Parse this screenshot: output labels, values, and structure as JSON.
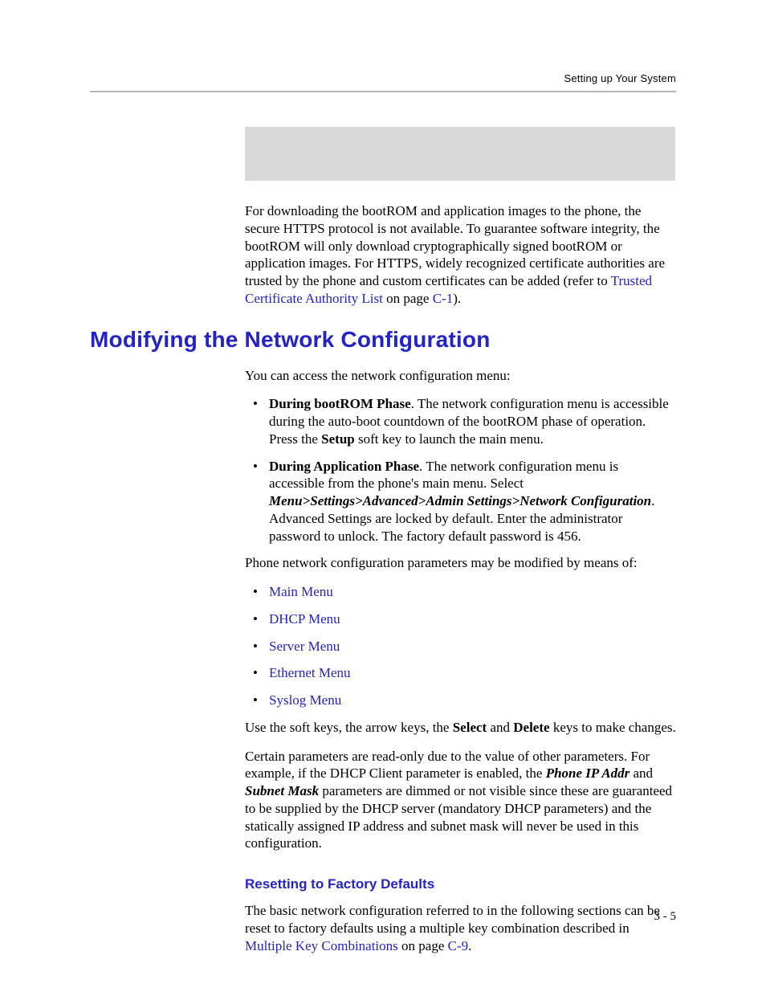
{
  "colors": {
    "link": "#2323c8",
    "heading": "#2323c8",
    "rule": "#b3b3b3",
    "placeholder_bg": "#d9d9d9",
    "text": "#000000",
    "background": "#ffffff"
  },
  "typography": {
    "body_family": "Palatino",
    "heading_family": "Futura",
    "body_size_pt": 11,
    "h1_size_pt": 18,
    "h3_size_pt": 11
  },
  "header": {
    "running": "Setting up Your System"
  },
  "intro": {
    "p1_a": "For downloading the bootROM and application images to the phone, the secure HTTPS protocol is not available. To guarantee software integrity, the bootROM will only download cryptographically signed bootROM or application images. For HTTPS, widely recognized certificate authorities are trusted by the phone and custom certificates can be added (refer to ",
    "p1_link": "Trusted Certificate Authority List",
    "p1_b": " on page ",
    "p1_page": "C-1",
    "p1_c": ")."
  },
  "section": {
    "title": "Modifying the Network Configuration",
    "lead": "You can access the network configuration menu:",
    "bullets": [
      {
        "lead": "During bootROM Phase",
        "rest_a": ". The network configuration menu is accessible during the auto-boot countdown of the bootROM phase of operation. Press the ",
        "bold1": "Setup",
        "rest_b": " soft key to launch the main menu."
      },
      {
        "lead": "During Application Phase",
        "rest_a": ". The network configuration menu is accessible from the phone's main menu. Select ",
        "italic1": "Menu>Settings>Advanced>Admin Settings>Network Configuration",
        "rest_b": ". Advanced Settings are locked by default. Enter the administrator password to unlock. The factory default password is 456."
      }
    ],
    "mid": "Phone network configuration parameters may be modified by means of:",
    "menu_links": [
      "Main Menu",
      "DHCP Menu",
      "Server Menu",
      "Ethernet Menu",
      "Syslog Menu"
    ],
    "after_links_a": "Use the soft keys, the arrow keys, the ",
    "after_links_b1": "Select",
    "after_links_mid": " and ",
    "after_links_b2": "Delete",
    "after_links_c": " keys to make changes.",
    "readonly_a": "Certain parameters are read-only due to the value of other parameters. For example, if the DHCP Client parameter is enabled, the ",
    "readonly_b1": "Phone IP Addr",
    "readonly_mid": " and ",
    "readonly_b2": "Subnet Mask",
    "readonly_c": " parameters are dimmed or not visible since these are guaranteed to be supplied by the DHCP server (mandatory DHCP parameters) and the statically assigned IP address and subnet mask will never be used in this configuration."
  },
  "sub": {
    "title": "Resetting to Factory Defaults",
    "p_a": "The basic network configuration referred to in the following sections can be reset to factory defaults using a multiple key combination described in ",
    "p_link": "Multiple Key Combinations",
    "p_b": " on page ",
    "p_page": "C-9",
    "p_c": "."
  },
  "footer": {
    "page": "3 - 5"
  }
}
